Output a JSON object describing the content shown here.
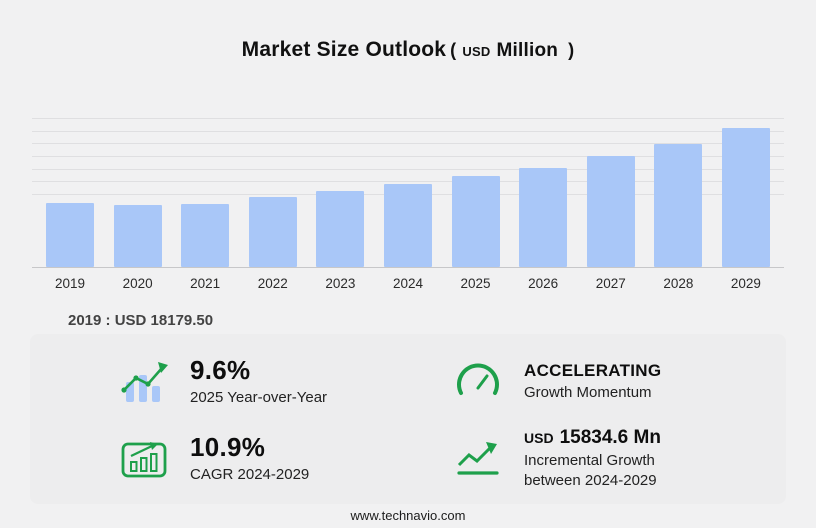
{
  "title": {
    "main": "Market Size Outlook",
    "paren_open": "(",
    "currency": "USD",
    "unit": "Million",
    "paren_close": ")"
  },
  "chart_data": {
    "type": "bar",
    "title": "Market Size Outlook (USD Million)",
    "categories": [
      "2019",
      "2020",
      "2021",
      "2022",
      "2023",
      "2024",
      "2025",
      "2026",
      "2027",
      "2028",
      "2029"
    ],
    "values": [
      18179.5,
      17600,
      17900,
      19600,
      21500,
      23371.1,
      25614.8,
      28000,
      31400,
      34700,
      39205.7
    ],
    "ylabel": "USD Million",
    "xlabel": "",
    "ylim": [
      0,
      42000
    ],
    "bar_color": "#a9c7f8",
    "grid": true,
    "legend": "none"
  },
  "annotation": {
    "text": "2019 : USD 18179.50"
  },
  "stats": {
    "yoy": {
      "value": "9.6%",
      "label": "2025 Year-over-Year"
    },
    "momentum": {
      "title": "ACCELERATING",
      "label": "Growth Momentum"
    },
    "cagr": {
      "value": "10.9%",
      "label_prefix": "CAGR",
      "label_range": "2024-2029"
    },
    "incremental": {
      "currency": "USD",
      "value": "15834.6 Mn",
      "label_line1": "Incremental Growth",
      "label_line2": "between 2024-2029"
    }
  },
  "footer": {
    "url": "www.technavio.com"
  },
  "colors": {
    "bar": "#a9c7f8",
    "accent_green": "#1ea04b",
    "background": "#f1f1f2"
  }
}
